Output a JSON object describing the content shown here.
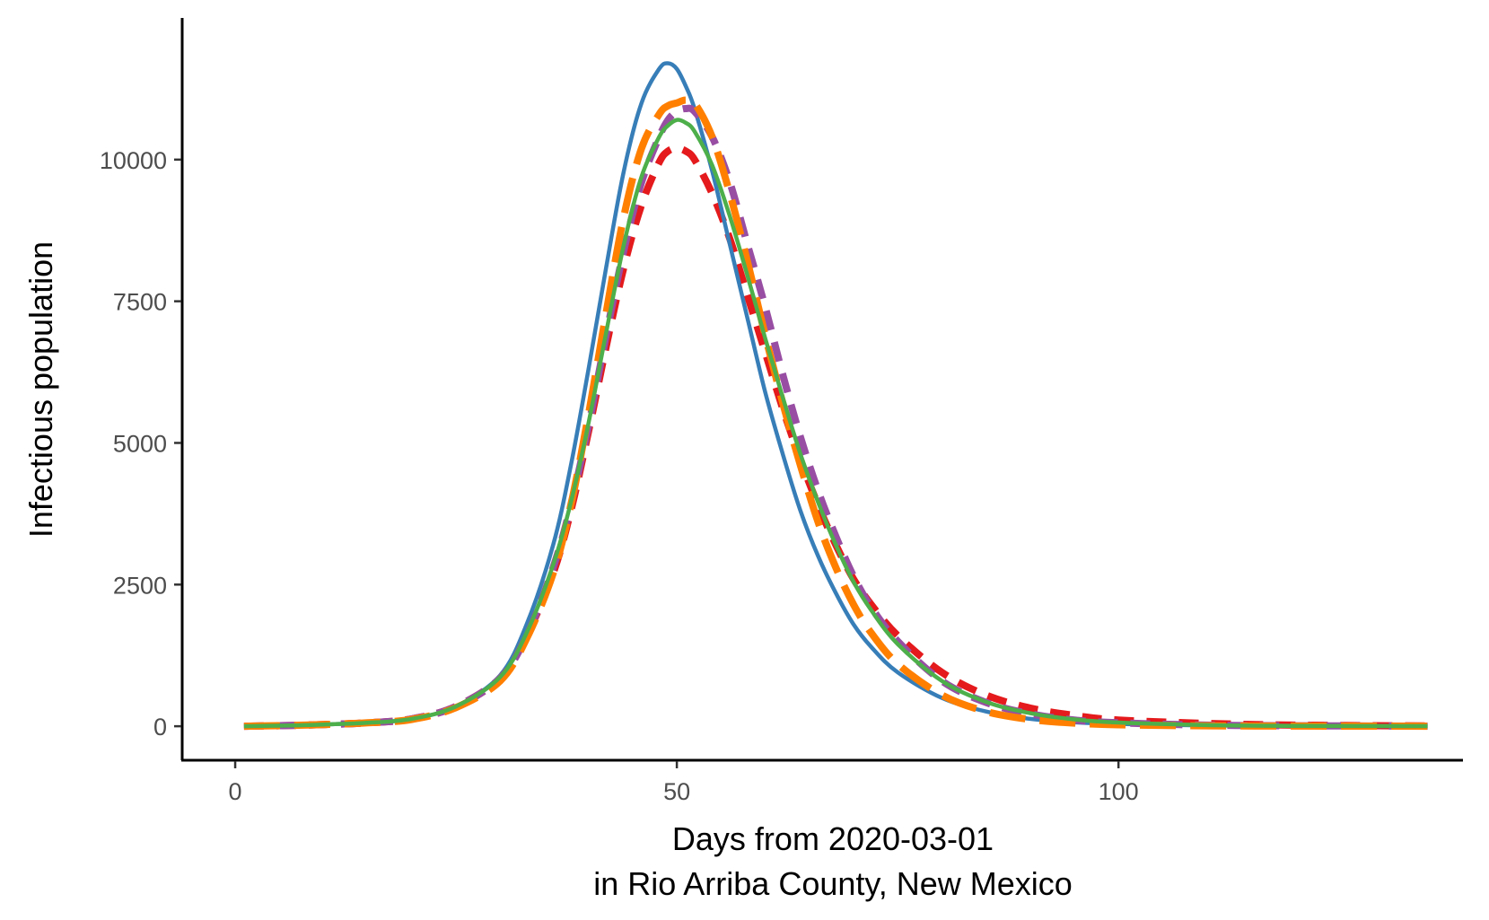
{
  "chart_data": {
    "type": "line",
    "title": "",
    "xlabel_lines": [
      "Days from 2020-03-01",
      "in Rio Arriba County, New Mexico"
    ],
    "ylabel": "Infectious population",
    "xlim": [
      -6,
      139
    ],
    "ylim": [
      -600,
      12500
    ],
    "xticks": [
      0,
      50,
      100
    ],
    "yticks": [
      0,
      2500,
      5000,
      7500,
      10000
    ],
    "x": [
      1,
      5,
      10,
      15,
      20,
      25,
      30,
      33,
      36,
      38,
      40,
      42,
      44,
      46,
      48,
      49,
      50,
      51,
      52,
      54,
      56,
      58,
      60,
      62,
      64,
      66,
      68,
      70,
      72,
      75,
      80,
      85,
      90,
      95,
      100,
      110,
      120,
      135
    ],
    "series": [
      {
        "color": "#e41a1c",
        "dash": "dashed",
        "values": [
          0,
          10,
          30,
          60,
          130,
          350,
          850,
          1600,
          2700,
          3800,
          5200,
          6700,
          8100,
          9200,
          9950,
          10150,
          10200,
          10150,
          10000,
          9400,
          8600,
          7600,
          6600,
          5600,
          4700,
          3900,
          3200,
          2600,
          2150,
          1600,
          950,
          550,
          320,
          190,
          110,
          50,
          20,
          5
        ]
      },
      {
        "color": "#377eb8",
        "dash": "solid",
        "values": [
          0,
          10,
          30,
          60,
          130,
          350,
          900,
          1800,
          3200,
          4600,
          6300,
          8100,
          9800,
          11000,
          11600,
          11700,
          11600,
          11300,
          10900,
          9800,
          8500,
          7200,
          5900,
          4800,
          3800,
          3000,
          2350,
          1800,
          1400,
          950,
          500,
          260,
          130,
          70,
          40,
          15,
          6,
          2
        ]
      },
      {
        "color": "#984ea3",
        "dash": "dashed",
        "values": [
          0,
          10,
          30,
          60,
          130,
          350,
          850,
          1600,
          2800,
          3900,
          5300,
          6900,
          8400,
          9600,
          10400,
          10700,
          10850,
          10900,
          10850,
          10400,
          9600,
          8500,
          7400,
          6200,
          5100,
          4150,
          3350,
          2650,
          2100,
          1500,
          800,
          420,
          220,
          110,
          60,
          20,
          8,
          2
        ]
      },
      {
        "color": "#ff7f00",
        "dash": "longdash",
        "values": [
          0,
          10,
          30,
          60,
          120,
          330,
          800,
          1550,
          2700,
          3900,
          5500,
          7300,
          9000,
          10200,
          10800,
          10950,
          11000,
          11050,
          11000,
          10400,
          9400,
          8200,
          6900,
          5700,
          4600,
          3600,
          2800,
          2150,
          1650,
          1100,
          550,
          260,
          120,
          55,
          25,
          8,
          3,
          1
        ]
      },
      {
        "color": "#4daf4a",
        "dash": "solid",
        "values": [
          0,
          10,
          30,
          60,
          130,
          350,
          870,
          1650,
          2850,
          3950,
          5350,
          6950,
          8500,
          9700,
          10400,
          10600,
          10700,
          10650,
          10500,
          9900,
          9000,
          7950,
          6850,
          5800,
          4800,
          3950,
          3200,
          2550,
          2050,
          1450,
          800,
          430,
          230,
          120,
          65,
          20,
          7,
          2
        ]
      }
    ]
  }
}
